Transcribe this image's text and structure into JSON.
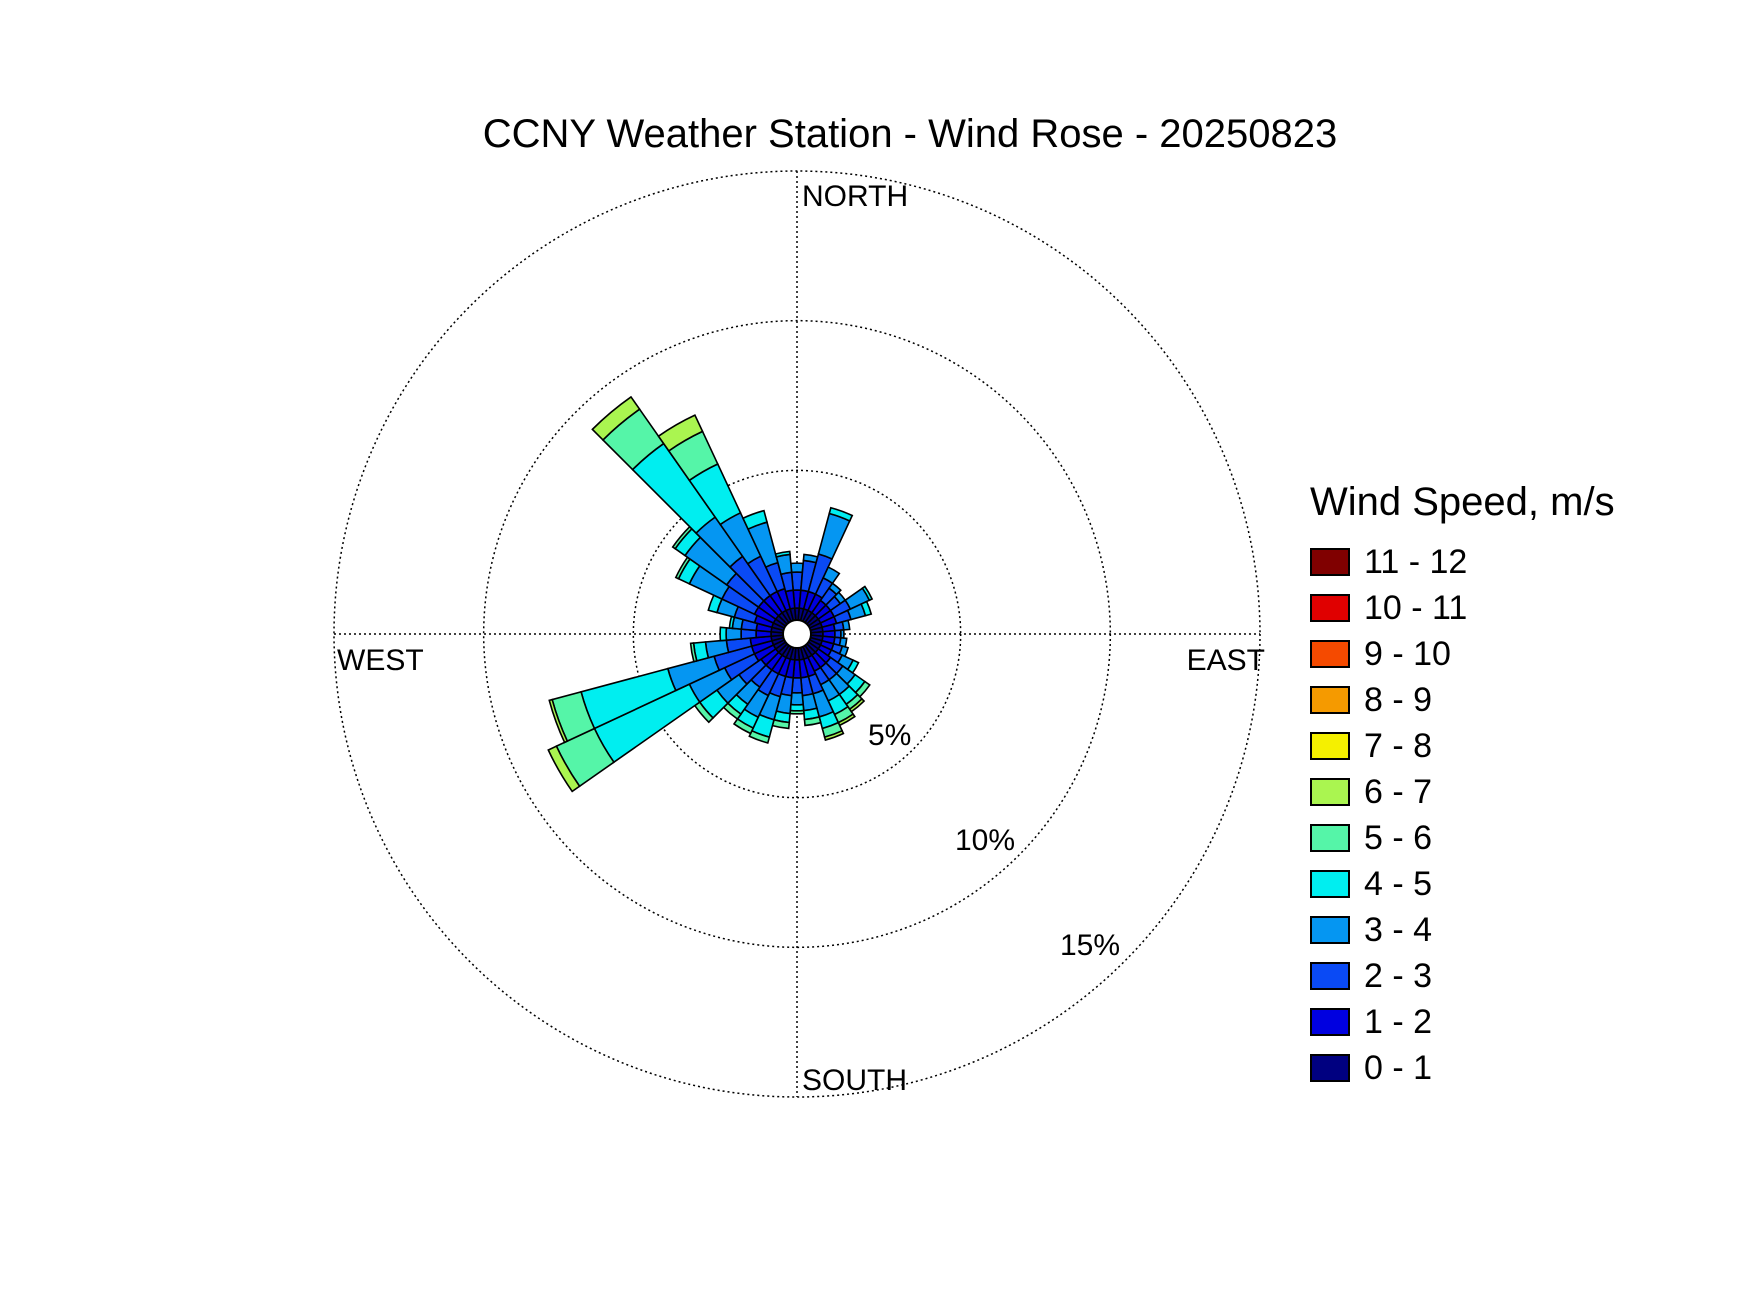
{
  "chart_data": {
    "type": "wind-rose",
    "title": "CCNY Weather Station - Wind Rose - 20250823",
    "legend_title": "Wind Speed, m/s",
    "legend_placement": "right",
    "directions": {
      "north": "NORTH",
      "east": "EAST",
      "south": "SOUTH",
      "west": "WEST"
    },
    "radial_axis": {
      "unit": "%",
      "ticks": [
        5,
        10,
        15
      ],
      "tick_labels": [
        "5%",
        "10%",
        "15%"
      ],
      "max": 15,
      "grid": true
    },
    "speed_bins": [
      {
        "label": "0 - 1",
        "color": "#000080"
      },
      {
        "label": "1 - 2",
        "color": "#0000e0"
      },
      {
        "label": "2 - 3",
        "color": "#0a4af5"
      },
      {
        "label": "3 - 4",
        "color": "#0596f2"
      },
      {
        "label": "4 - 5",
        "color": "#00eef0"
      },
      {
        "label": "5 - 6",
        "color": "#55f5a8"
      },
      {
        "label": "6 - 7",
        "color": "#aaf550"
      },
      {
        "label": "7 - 8",
        "color": "#f5f000"
      },
      {
        "label": "8 - 9",
        "color": "#f59a00"
      },
      {
        "label": "9 - 10",
        "color": "#f54a00"
      },
      {
        "label": "10 - 11",
        "color": "#e00000"
      },
      {
        "label": "11 - 12",
        "color": "#800000"
      }
    ],
    "direction_width_deg": 10,
    "sectors": [
      {
        "dir": 0,
        "cum": [
          0.4,
          1.0,
          1.6,
          1.9
        ]
      },
      {
        "dir": 10,
        "cum": [
          0.4,
          1.0,
          2.0,
          2.2
        ]
      },
      {
        "dir": 20,
        "cum": [
          0.4,
          1.0,
          2.3,
          3.7,
          3.9
        ]
      },
      {
        "dir": 30,
        "cum": [
          0.4,
          1.0,
          1.6,
          2.0
        ]
      },
      {
        "dir": 40,
        "cum": [
          0.4,
          0.9,
          1.4,
          1.6
        ]
      },
      {
        "dir": 50,
        "cum": [
          0.4,
          0.9,
          1.3,
          1.5
        ]
      },
      {
        "dir": 60,
        "cum": [
          0.4,
          0.9,
          1.5,
          2.2,
          2.3
        ]
      },
      {
        "dir": 70,
        "cum": [
          0.4,
          0.9,
          1.4,
          1.9,
          2.1
        ]
      },
      {
        "dir": 80,
        "cum": [
          0.4,
          0.8,
          1.1,
          1.3
        ]
      },
      {
        "dir": 90,
        "cum": [
          0.4,
          0.8,
          1.0,
          1.1
        ]
      },
      {
        "dir": 100,
        "cum": [
          0.4,
          0.8,
          1.0,
          1.2
        ]
      },
      {
        "dir": 110,
        "cum": [
          0.4,
          0.8,
          1.1,
          1.3
        ]
      },
      {
        "dir": 120,
        "cum": [
          0.4,
          0.8,
          1.2,
          1.6,
          1.8
        ]
      },
      {
        "dir": 130,
        "cum": [
          0.4,
          0.9,
          1.4,
          1.9,
          2.3,
          2.5
        ]
      },
      {
        "dir": 140,
        "cum": [
          0.4,
          0.9,
          1.4,
          2.0,
          2.4,
          2.6,
          2.7
        ]
      },
      {
        "dir": 150,
        "cum": [
          0.4,
          0.9,
          1.4,
          2.0,
          2.5,
          2.8,
          2.9
        ]
      },
      {
        "dir": 160,
        "cum": [
          0.4,
          1.0,
          1.6,
          2.4,
          2.8,
          3.1,
          3.2
        ]
      },
      {
        "dir": 170,
        "cum": [
          0.4,
          1.0,
          1.6,
          2.1,
          2.4,
          2.6
        ]
      },
      {
        "dir": 180,
        "cum": [
          0.4,
          1.0,
          1.5,
          1.9,
          2.1,
          2.2
        ]
      },
      {
        "dir": 190,
        "cum": [
          0.4,
          1.0,
          1.6,
          2.2,
          2.5,
          2.7
        ]
      },
      {
        "dir": 200,
        "cum": [
          0.4,
          1.0,
          1.7,
          2.5,
          3.1,
          3.3
        ]
      },
      {
        "dir": 210,
        "cum": [
          0.4,
          1.0,
          1.8,
          2.6,
          3.0,
          3.2
        ]
      },
      {
        "dir": 220,
        "cum": [
          0.4,
          1.0,
          1.7,
          2.4,
          2.8,
          3.0
        ]
      },
      {
        "dir": 230,
        "cum": [
          0.4,
          1.0,
          1.9,
          2.8,
          3.5,
          3.7
        ]
      },
      {
        "dir": 240,
        "cum": [
          0.4,
          1.1,
          2.2,
          3.5,
          7.0,
          8.4,
          8.7
        ]
      },
      {
        "dir": 250,
        "cum": [
          0.4,
          1.1,
          2.4,
          4.0,
          7.0,
          8.0,
          8.1
        ]
      },
      {
        "dir": 260,
        "cum": [
          0.4,
          1.1,
          1.9,
          2.6,
          3.0,
          3.1
        ]
      },
      {
        "dir": 270,
        "cum": [
          0.4,
          0.9,
          1.4,
          1.9,
          2.1
        ]
      },
      {
        "dir": 280,
        "cum": [
          0.4,
          0.9,
          1.4,
          1.7,
          1.8
        ]
      },
      {
        "dir": 290,
        "cum": [
          0.4,
          1.0,
          1.7,
          2.3,
          2.6
        ]
      },
      {
        "dir": 300,
        "cum": [
          0.4,
          1.1,
          2.3,
          3.5,
          3.9,
          4.0
        ]
      },
      {
        "dir": 310,
        "cum": [
          0.4,
          1.1,
          2.4,
          4.1,
          4.5,
          4.6
        ]
      },
      {
        "dir": 320,
        "cum": [
          0.4,
          1.1,
          2.7,
          4.3,
          7.3,
          8.7,
          9.2
        ]
      },
      {
        "dir": 330,
        "cum": [
          0.4,
          1.1,
          2.4,
          4.0,
          5.8,
          7.0,
          7.6
        ]
      },
      {
        "dir": 340,
        "cum": [
          0.4,
          1.1,
          2.0,
          3.4,
          3.8
        ]
      },
      {
        "dir": 350,
        "cum": [
          0.4,
          1.0,
          1.6,
          2.2,
          2.3
        ]
      }
    ]
  }
}
